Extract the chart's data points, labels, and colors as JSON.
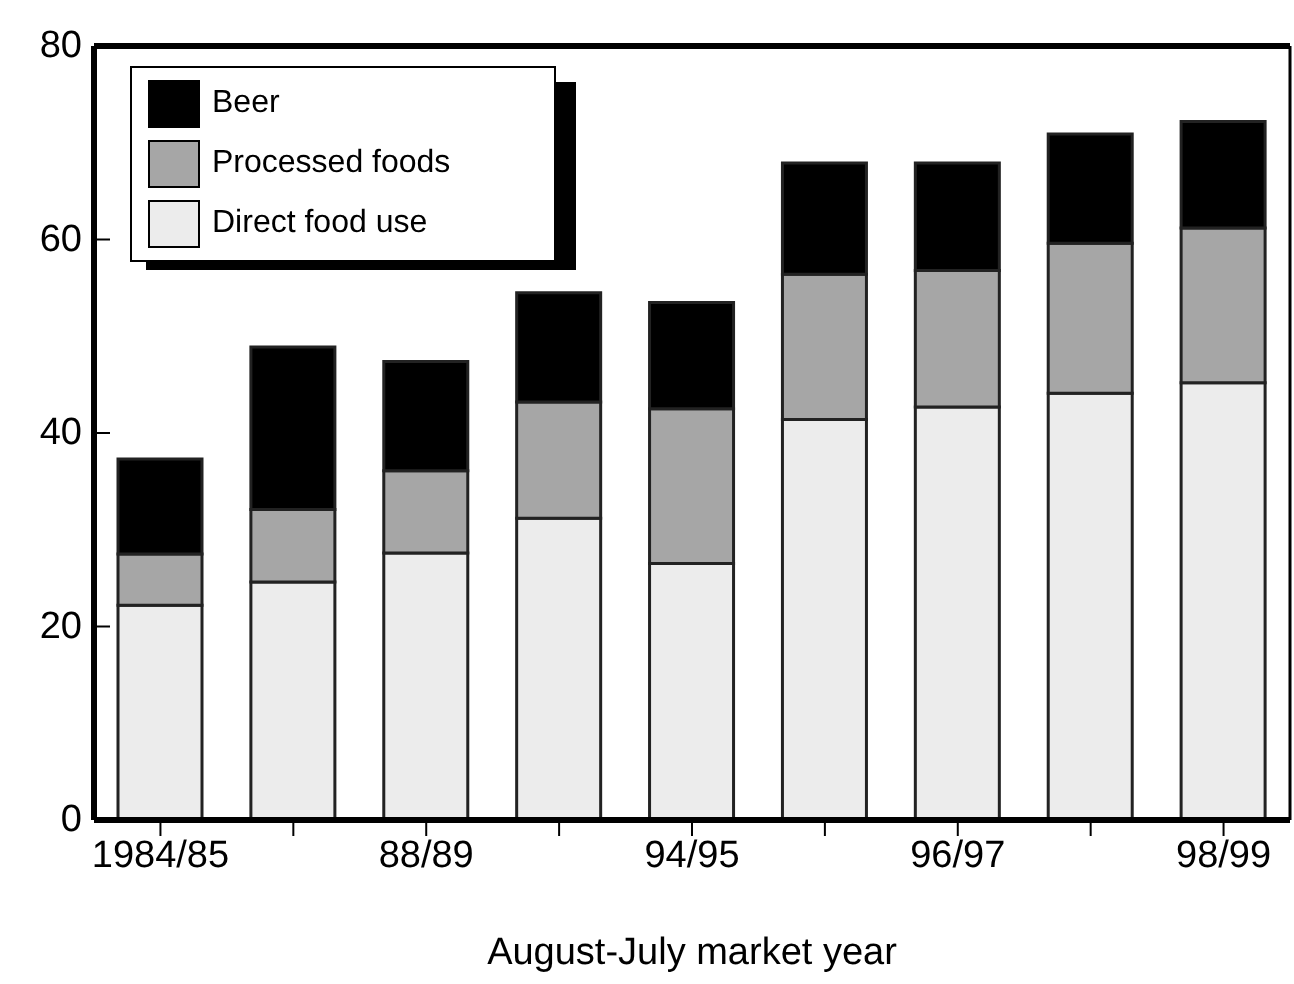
{
  "chart_data": {
    "type": "bar",
    "stacked": true,
    "xlabel": "August-July market year",
    "categories": [
      "1984/85",
      null,
      "88/89",
      null,
      "94/95",
      null,
      "96/97",
      null,
      "98/99"
    ],
    "series": [
      {
        "name": "Direct food use",
        "color": "#ececec",
        "values": [
          22.2,
          24.6,
          27.6,
          31.2,
          26.5,
          41.4,
          42.7,
          44.1,
          45.2
        ]
      },
      {
        "name": "Processed foods",
        "color": "#a6a6a6",
        "values": [
          5.3,
          7.5,
          8.5,
          12.0,
          16.0,
          15.0,
          14.1,
          15.5,
          16.0
        ]
      },
      {
        "name": "Beer",
        "color": "#000000",
        "values": [
          9.8,
          16.8,
          11.3,
          11.3,
          11.0,
          11.5,
          11.1,
          11.3,
          11.0
        ]
      }
    ],
    "ylim": [
      0,
      80
    ],
    "yticks": [
      0,
      20,
      40,
      60,
      80
    ],
    "grid": false,
    "legend": "top left"
  }
}
